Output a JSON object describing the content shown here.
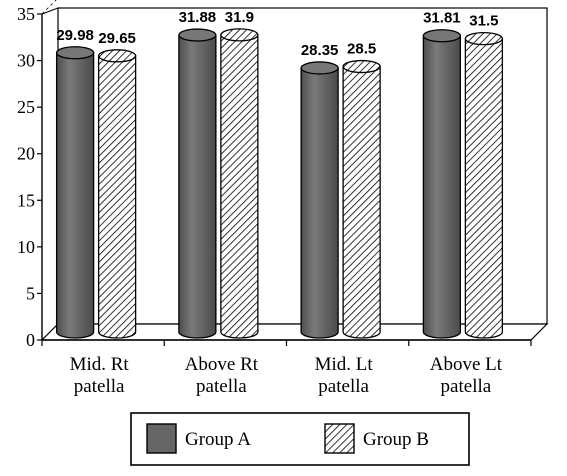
{
  "chart_data": {
    "type": "bar",
    "categories": [
      [
        "Mid. Rt",
        "patella"
      ],
      [
        "Above Rt",
        "patella"
      ],
      [
        "Mid. Lt",
        "patella"
      ],
      [
        "Above Lt",
        "patella"
      ]
    ],
    "series": [
      {
        "name": "Group A",
        "values": [
          29.98,
          31.88,
          28.35,
          31.81
        ],
        "labels": [
          "29.98",
          "31.88",
          "28.35",
          "31.81"
        ],
        "pattern": "solid",
        "color": "#6b6b6b"
      },
      {
        "name": "Group B",
        "values": [
          29.65,
          31.9,
          28.5,
          31.5
        ],
        "labels": [
          "29.65",
          "31.9",
          "28.5",
          "31.5"
        ],
        "pattern": "hatched",
        "color": "#ffffff"
      }
    ],
    "ylim": [
      0,
      35
    ],
    "yticks": [
      0,
      5,
      10,
      15,
      20,
      25,
      30,
      35
    ],
    "grid": true,
    "legend_position": "bottom",
    "title": "",
    "xlabel": "",
    "ylabel": ""
  }
}
